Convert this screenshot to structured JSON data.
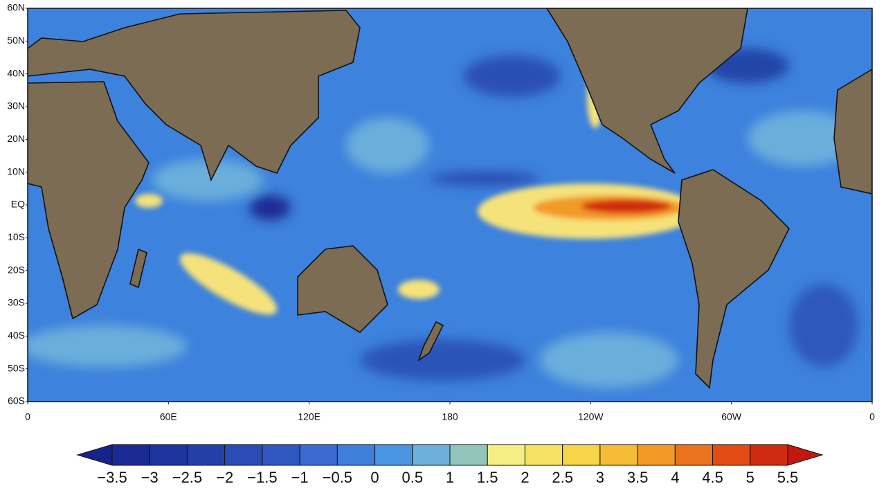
{
  "map": {
    "lat_labels": [
      "60N",
      "50N",
      "40N",
      "30N",
      "20N",
      "10N",
      "EQ",
      "10S",
      "20S",
      "30S",
      "40S",
      "50S",
      "60S"
    ],
    "lon_labels": [
      "0",
      "60E",
      "120E",
      "180",
      "120W",
      "60W",
      "0"
    ]
  },
  "colorbar": {
    "labels": [
      "−3.5",
      "−3",
      "−2.5",
      "−2",
      "−1.5",
      "−1",
      "−0.5",
      "0",
      "0.5",
      "1",
      "1.5",
      "2",
      "2.5",
      "3",
      "3.5",
      "4",
      "4.5",
      "5",
      "5.5"
    ],
    "colors": [
      "#16248a",
      "#1a2c94",
      "#1e349e",
      "#2440a8",
      "#2a4cb4",
      "#3058c0",
      "#3a6cd0",
      "#3f80dc",
      "#4a94e4",
      "#6cb0dc",
      "#92c6bc",
      "#f6ee84",
      "#f8e262",
      "#f8d448",
      "#f6bc36",
      "#f29a26",
      "#ea741c",
      "#e24c14",
      "#d02a10",
      "#c01810"
    ]
  }
}
